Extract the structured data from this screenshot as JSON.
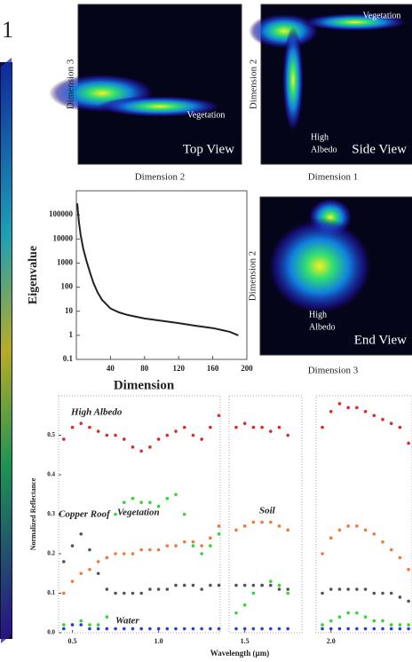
{
  "fragment": "1",
  "panels": [
    {
      "ylabel": "Dimension 3",
      "xlabel": "Dimension 2",
      "annotation": "Vegetation",
      "view": "Top View"
    },
    {
      "ylabel": "Dimension 2",
      "xlabel": "Dimension 1",
      "annotation": "Vegetation",
      "lines": [
        "High",
        "Albedo"
      ],
      "view": "Side View"
    },
    {
      "ylabel": "Dimension 2",
      "xlabel": "Dimension 3",
      "lines": [
        "High",
        "Albedo"
      ],
      "view": "End View"
    }
  ],
  "chart_data": [
    {
      "type": "line",
      "ylabel": "Eigenvalue",
      "xlabel": "Dimension",
      "color": "#222222",
      "log_y": true,
      "x": [
        1,
        3,
        5,
        8,
        12,
        16,
        20,
        25,
        30,
        40,
        50,
        60,
        80,
        100,
        120,
        140,
        160,
        180,
        190
      ],
      "values": [
        300000,
        50000,
        15000,
        4000,
        1200,
        400,
        150,
        60,
        30,
        13,
        9,
        7,
        5,
        4,
        3.2,
        2.5,
        2,
        1.4,
        1.0
      ],
      "xlim": [
        0,
        200
      ],
      "xticks": [
        40,
        80,
        120,
        160,
        200
      ],
      "ylim": [
        0.1,
        1000000
      ],
      "yticks": [
        0.1,
        1,
        10,
        100,
        1000,
        10000,
        100000
      ]
    },
    {
      "type": "scatter",
      "ylabel": "Normalized Reflectance",
      "xlabel": "Wavelength (µm)",
      "x": [
        0.45,
        0.5,
        0.55,
        0.6,
        0.65,
        0.7,
        0.75,
        0.8,
        0.85,
        0.9,
        0.95,
        1.0,
        1.05,
        1.1,
        1.15,
        1.2,
        1.25,
        1.3,
        1.35,
        1.45,
        1.5,
        1.55,
        1.6,
        1.65,
        1.7,
        1.75,
        1.95,
        2.0,
        2.05,
        2.1,
        2.15,
        2.2,
        2.25,
        2.3,
        2.35,
        2.4,
        2.45
      ],
      "series": [
        {
          "name": "High Albedo",
          "color": "#e02828",
          "values": [
            0.49,
            0.52,
            0.53,
            0.52,
            0.51,
            0.5,
            0.5,
            0.49,
            0.47,
            0.46,
            0.47,
            0.49,
            0.5,
            0.51,
            0.52,
            0.5,
            0.49,
            0.52,
            0.55,
            0.52,
            0.53,
            0.52,
            0.52,
            0.51,
            0.52,
            0.5,
            0.52,
            0.56,
            0.58,
            0.57,
            0.57,
            0.56,
            0.55,
            0.54,
            0.53,
            0.52,
            0.48
          ]
        },
        {
          "name": "Vegetation",
          "color": "#2ed82e",
          "values": [
            0.02,
            0.02,
            0.03,
            0.02,
            0.02,
            0.04,
            0.3,
            0.33,
            0.34,
            0.33,
            0.33,
            0.32,
            0.34,
            0.35,
            0.3,
            0.22,
            0.2,
            0.22,
            0.25,
            0.05,
            0.07,
            0.1,
            0.12,
            0.13,
            0.12,
            0.1,
            0.02,
            0.03,
            0.04,
            0.05,
            0.05,
            0.04,
            0.03,
            0.03,
            0.02,
            0.02,
            0.02
          ]
        },
        {
          "name": "Soil",
          "color": "#f07838",
          "values": [
            0.1,
            0.13,
            0.15,
            0.16,
            0.18,
            0.19,
            0.2,
            0.2,
            0.2,
            0.21,
            0.21,
            0.21,
            0.22,
            0.22,
            0.23,
            0.23,
            0.22,
            0.24,
            0.27,
            0.26,
            0.27,
            0.28,
            0.28,
            0.28,
            0.27,
            0.26,
            0.2,
            0.24,
            0.26,
            0.27,
            0.27,
            0.26,
            0.25,
            0.23,
            0.21,
            0.19,
            0.16
          ]
        },
        {
          "name": "Copper Roof",
          "color": "#555555",
          "values": [
            0.18,
            0.22,
            0.25,
            0.21,
            0.15,
            0.11,
            0.1,
            0.1,
            0.1,
            0.1,
            0.11,
            0.11,
            0.11,
            0.12,
            0.12,
            0.12,
            0.11,
            0.12,
            0.12,
            0.12,
            0.12,
            0.12,
            0.12,
            0.12,
            0.11,
            0.11,
            0.1,
            0.11,
            0.11,
            0.11,
            0.11,
            0.11,
            0.1,
            0.1,
            0.1,
            0.09,
            0.08
          ]
        },
        {
          "name": "Water",
          "color": "#2040e0",
          "values": [
            0.01,
            0.02,
            0.02,
            0.01,
            0.01,
            0.01,
            0.01,
            0.01,
            0.01,
            0.01,
            0.01,
            0.01,
            0.01,
            0.01,
            0.01,
            0.01,
            0.01,
            0.01,
            0.01,
            0.01,
            0.01,
            0.01,
            0.01,
            0.01,
            0.01,
            0.01,
            0.01,
            0.01,
            0.01,
            0.01,
            0.01,
            0.01,
            0.01,
            0.01,
            0.01,
            0.01,
            0.01
          ]
        }
      ],
      "xlim": [
        0.42,
        2.47
      ],
      "xticks": [
        {
          "value": 0.5,
          "label": "0.5"
        },
        {
          "value": 1.0,
          "label": "1.0"
        },
        1.5,
        {
          "value": 2.0,
          "label": "2.0"
        }
      ],
      "ylim": [
        0,
        0.6
      ],
      "yticks": [
        {
          "value": 0,
          "label": "0.0"
        },
        0.1,
        0.2,
        0.3,
        0.4,
        0.5
      ]
    }
  ]
}
